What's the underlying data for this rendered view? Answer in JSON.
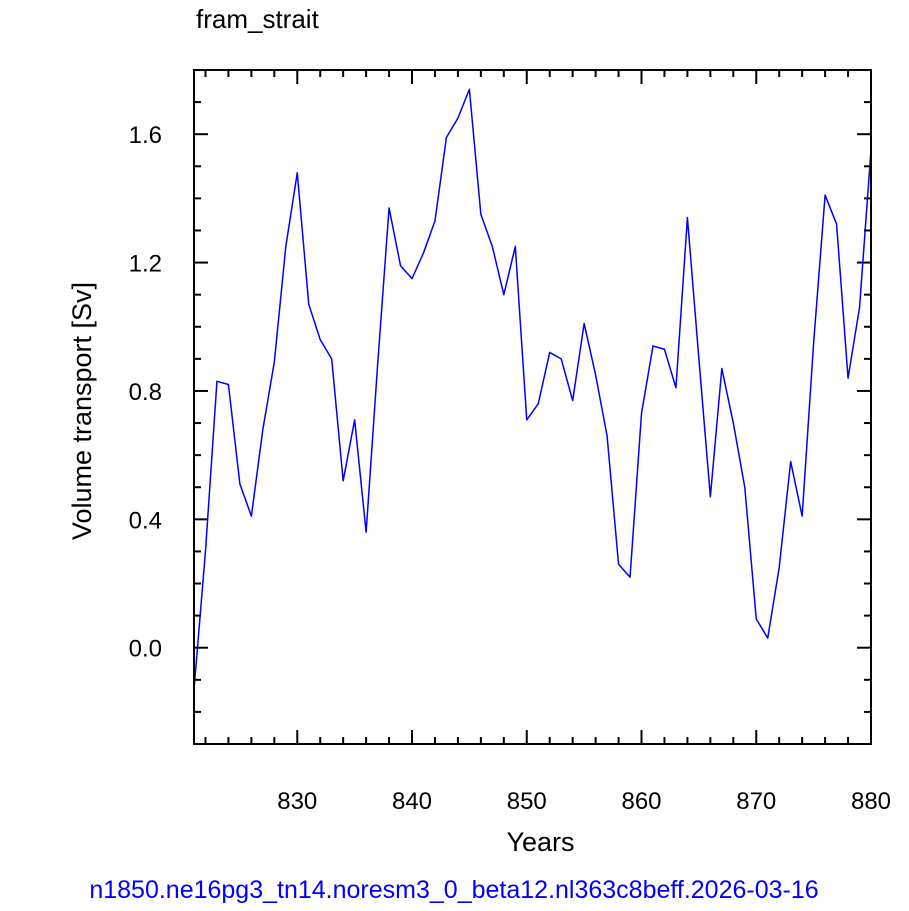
{
  "chart_data": {
    "type": "line",
    "title": "fram_strait",
    "xlabel": "Years",
    "ylabel": "Volume transport [Sv]",
    "footer": "n1850.ne16pg3_tn14.noresm3_0_beta12.nl363c8beff.2026-03-16",
    "xlim": [
      821,
      880
    ],
    "ylim": [
      -0.3,
      1.8
    ],
    "xticks": [
      830,
      840,
      850,
      860,
      870,
      880
    ],
    "xtick_labels": [
      "830",
      "840",
      "850",
      "860",
      "870",
      "880"
    ],
    "yticks": [
      0.0,
      0.4,
      0.8,
      1.2,
      1.6
    ],
    "ytick_labels": [
      "0.0",
      "0.4",
      "0.8",
      "1.2",
      "1.6"
    ],
    "grid": false,
    "series": [
      {
        "color": "#0000ff",
        "x": [
          821,
          822,
          823,
          824,
          825,
          826,
          827,
          828,
          829,
          830,
          831,
          832,
          833,
          834,
          835,
          836,
          837,
          838,
          839,
          840,
          841,
          842,
          843,
          844,
          845,
          846,
          847,
          848,
          849,
          850,
          851,
          852,
          853,
          854,
          855,
          856,
          857,
          858,
          859,
          860,
          861,
          862,
          863,
          864,
          865,
          866,
          867,
          868,
          869,
          870,
          871,
          872,
          873,
          874,
          875,
          876,
          877,
          878,
          879,
          880
        ],
        "y": [
          -0.13,
          0.3,
          0.83,
          0.82,
          0.51,
          0.41,
          0.68,
          0.89,
          1.25,
          1.48,
          1.07,
          0.96,
          0.9,
          0.52,
          0.71,
          0.36,
          0.88,
          1.37,
          1.19,
          1.15,
          1.23,
          1.33,
          1.59,
          1.65,
          1.74,
          1.35,
          1.25,
          1.1,
          1.25,
          0.71,
          0.76,
          0.92,
          0.9,
          0.77,
          1.01,
          0.85,
          0.66,
          0.26,
          0.22,
          0.73,
          0.94,
          0.93,
          0.81,
          1.34,
          0.9,
          0.47,
          0.87,
          0.7,
          0.5,
          0.09,
          0.03,
          0.25,
          0.58,
          0.41,
          0.95,
          1.41,
          1.32,
          0.84,
          1.06,
          1.55
        ]
      }
    ]
  }
}
